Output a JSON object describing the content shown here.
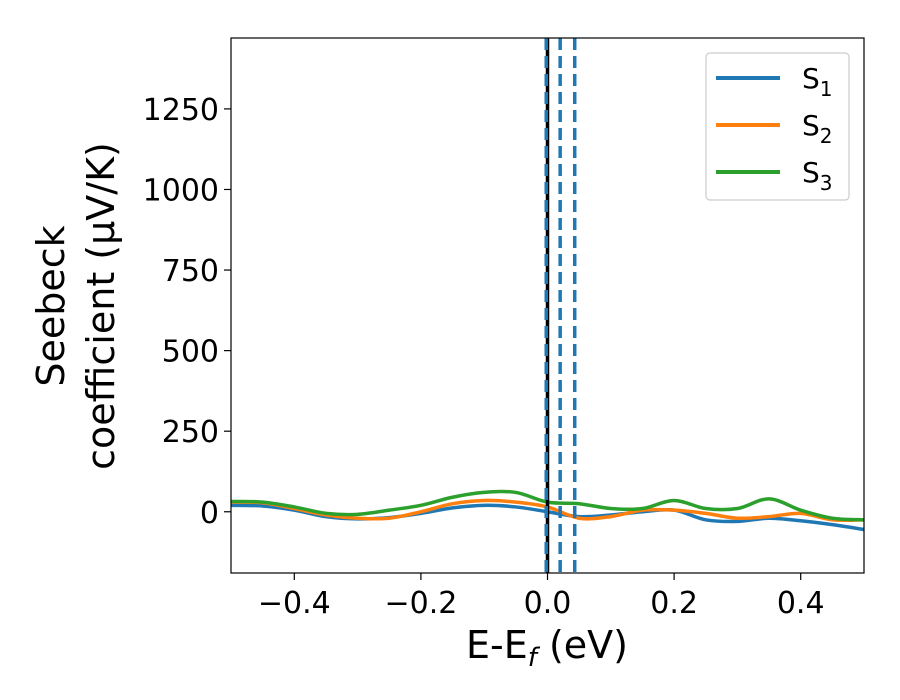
{
  "chart_data": {
    "type": "line",
    "xlabel_main": "E-E",
    "xlabel_sub": "f",
    "xlabel_unit": " (eV)",
    "ylabel_line1": "Seebeck",
    "ylabel_line2": "coefficient  (μV/K)",
    "xlim": [
      -0.5,
      0.5
    ],
    "ylim": [
      -190,
      1470
    ],
    "xticks": [
      -0.4,
      -0.2,
      0.0,
      0.2,
      0.4
    ],
    "xtick_labels": [
      "−0.4",
      "−0.2",
      "0.0",
      "0.2",
      "0.4"
    ],
    "yticks": [
      0,
      250,
      500,
      750,
      1000,
      1250
    ],
    "ytick_labels": [
      "0",
      "250",
      "500",
      "750",
      "1000",
      "1250"
    ],
    "grid": false,
    "legend_position": "top-right",
    "series": [
      {
        "name": "S",
        "name_sub": "1",
        "color": "#1f77b4",
        "x": [
          -0.5,
          -0.45,
          -0.4,
          -0.35,
          -0.3,
          -0.25,
          -0.2,
          -0.15,
          -0.1,
          -0.05,
          0.0,
          0.05,
          0.1,
          0.15,
          0.2,
          0.25,
          0.3,
          0.35,
          0.4,
          0.45,
          0.5
        ],
        "y": [
          20,
          18,
          5,
          -15,
          -22,
          -18,
          -5,
          12,
          20,
          15,
          0,
          -15,
          -10,
          0,
          5,
          -25,
          -30,
          -20,
          -28,
          -40,
          -55
        ]
      },
      {
        "name": "S",
        "name_sub": "2",
        "color": "#ff7f0e",
        "x": [
          -0.5,
          -0.45,
          -0.4,
          -0.35,
          -0.3,
          -0.25,
          -0.2,
          -0.15,
          -0.1,
          -0.05,
          0.0,
          0.05,
          0.1,
          0.15,
          0.2,
          0.25,
          0.3,
          0.35,
          0.4,
          0.45,
          0.5
        ],
        "y": [
          30,
          28,
          10,
          -10,
          -20,
          -20,
          0,
          25,
          35,
          30,
          15,
          -20,
          -15,
          5,
          5,
          -5,
          -20,
          -15,
          -5,
          -25,
          -25
        ]
      },
      {
        "name": "S",
        "name_sub": "3",
        "color": "#2ca02c",
        "x": [
          -0.5,
          -0.45,
          -0.4,
          -0.35,
          -0.3,
          -0.25,
          -0.2,
          -0.15,
          -0.1,
          -0.05,
          0.0,
          0.05,
          0.1,
          0.15,
          0.2,
          0.25,
          0.3,
          0.35,
          0.4,
          0.45,
          0.5
        ],
        "y": [
          32,
          30,
          15,
          -5,
          -8,
          5,
          20,
          45,
          60,
          60,
          30,
          25,
          10,
          10,
          35,
          10,
          10,
          40,
          5,
          -20,
          -25
        ]
      }
    ],
    "vlines": [
      {
        "x": 0.0,
        "color": "#000000",
        "style": "solid"
      },
      {
        "x": -0.002,
        "color": "#1f77b4",
        "style": "dashed"
      },
      {
        "x": 0.02,
        "color": "#1f77b4",
        "style": "dashed"
      },
      {
        "x": 0.043,
        "color": "#1f77b4",
        "style": "dashed"
      }
    ]
  }
}
